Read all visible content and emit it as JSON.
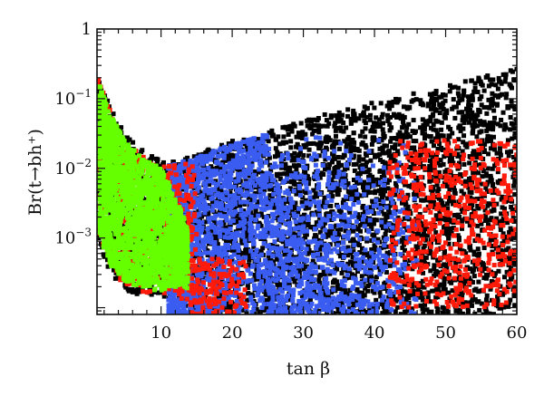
{
  "chart_data": {
    "type": "scatter",
    "title": "",
    "xlabel": "tan β",
    "ylabel": "Br(t→bh⁺)",
    "xlim": [
      1,
      60
    ],
    "ylim": [
      8e-05,
      1
    ],
    "yscale": "log",
    "x_ticks": [
      "10",
      "20",
      "30",
      "40",
      "50",
      "60"
    ],
    "x_tick_values": [
      10,
      20,
      30,
      40,
      50,
      60
    ],
    "y_ticks": [
      {
        "value": 1,
        "base": "1",
        "exp": ""
      },
      {
        "value": 0.1,
        "base": "10",
        "exp": "−1"
      },
      {
        "value": 0.01,
        "base": "10",
        "exp": "−2"
      },
      {
        "value": 0.001,
        "base": "10",
        "exp": "−3"
      }
    ],
    "grid": false,
    "series": [
      {
        "name": "all points",
        "color": "#000000",
        "upper_envelope": {
          "x": [
            1,
            3,
            5,
            8,
            10,
            12,
            15,
            20,
            25,
            30,
            40,
            50,
            60
          ],
          "y": [
            0.25,
            0.07,
            0.03,
            0.016,
            0.013,
            0.013,
            0.016,
            0.025,
            0.035,
            0.05,
            0.09,
            0.15,
            0.28
          ]
        },
        "lower_envelope": {
          "x": [
            1,
            2,
            3,
            5,
            7,
            10,
            13,
            14,
            60
          ],
          "y": [
            0.0012,
            0.0005,
            0.0003,
            0.00018,
            0.00015,
            0.00013,
            0.00012,
            8e-05,
            8e-05
          ]
        }
      },
      {
        "name": "red points",
        "color": "#ff1a0a",
        "regions": [
          {
            "xlim": [
              1,
              15
            ],
            "ylim_note": "edge of green region"
          },
          {
            "xlim": [
              14,
              22
            ],
            "ylim": [
              8e-05,
              0.0005
            ]
          },
          {
            "xlim": [
              40,
              60
            ],
            "ylim": [
              0.0001,
              0.03
            ]
          }
        ]
      },
      {
        "name": "blue points",
        "color": "#3a5cf0",
        "region": {
          "xlim": [
            11,
            46
          ],
          "ylim": [
            8e-05,
            0.03
          ]
        }
      },
      {
        "name": "green points",
        "color": "#66ff00",
        "region": {
          "xlim": [
            1,
            14
          ],
          "ylim": [
            0.00015,
            0.12
          ]
        }
      }
    ]
  }
}
